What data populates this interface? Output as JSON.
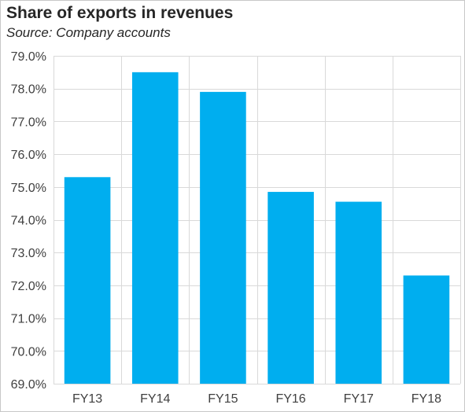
{
  "chart_data": {
    "type": "bar",
    "title": "Share of exports in revenues",
    "subtitle": "Source: Company accounts",
    "xlabel": "",
    "ylabel": "",
    "categories": [
      "FY13",
      "FY14",
      "FY15",
      "FY16",
      "FY17",
      "FY18"
    ],
    "values": [
      75.3,
      78.5,
      77.9,
      74.85,
      74.55,
      72.3
    ],
    "ylim": [
      69.0,
      79.0
    ],
    "yticks": [
      69.0,
      70.0,
      71.0,
      72.0,
      73.0,
      74.0,
      75.0,
      76.0,
      77.0,
      78.0,
      79.0
    ],
    "ytick_labels": [
      "69.0%",
      "70.0%",
      "71.0%",
      "72.0%",
      "73.0%",
      "74.0%",
      "75.0%",
      "76.0%",
      "77.0%",
      "78.0%",
      "79.0%"
    ],
    "grid": true,
    "legend": "none",
    "bar_color": "#00AEEF",
    "grid_color": "#D9D9D9"
  }
}
